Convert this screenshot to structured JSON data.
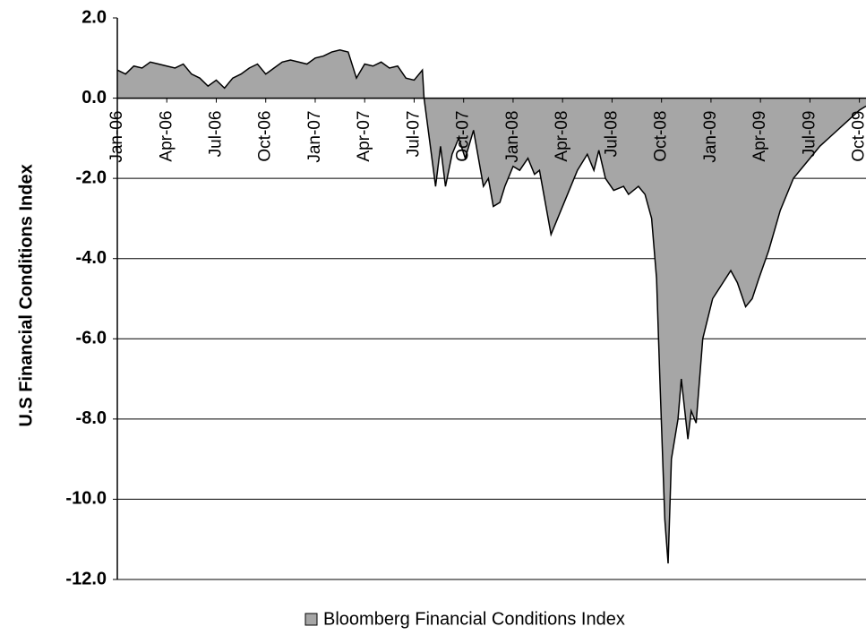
{
  "chart_data": {
    "type": "area",
    "y_label": "U.S Financial Conditions Index",
    "x": [
      0,
      0.5,
      1,
      1.5,
      2,
      2.5,
      3,
      3.5,
      4,
      4.5,
      5,
      5.5,
      6,
      6.5,
      7,
      7.5,
      8,
      8.5,
      9,
      9.5,
      10,
      10.5,
      11,
      11.5,
      12,
      12.5,
      13,
      13.5,
      14,
      14.5,
      15,
      15.5,
      16,
      16.5,
      17,
      17.5,
      18,
      18.5,
      18.6,
      19.3,
      19.6,
      19.9,
      20.3,
      20.7,
      21.1,
      21.6,
      22.2,
      22.5,
      22.8,
      23.2,
      23.5,
      24.0,
      24.4,
      24.9,
      25.3,
      25.6,
      26.3,
      26.9,
      27.4,
      27.9,
      28.5,
      28.9,
      29.2,
      29.6,
      30.1,
      30.7,
      31.0,
      31.6,
      32.0,
      32.4,
      32.7,
      32.9,
      33.2,
      33.4,
      33.6,
      34.0,
      34.2,
      34.6,
      34.8,
      35.1,
      35.5,
      36.1,
      37.2,
      37.6,
      38.1,
      38.5,
      38.9,
      39.5,
      40.2,
      41.0,
      41.8,
      42.6,
      43.4,
      44.2,
      45.0,
      45.4
    ],
    "series": [
      {
        "name": "Bloomberg Financial Conditions Index",
        "color": "#a6a6a6",
        "values": [
          0.7,
          0.6,
          0.8,
          0.75,
          0.9,
          0.85,
          0.8,
          0.75,
          0.85,
          0.6,
          0.5,
          0.3,
          0.45,
          0.25,
          0.5,
          0.6,
          0.75,
          0.85,
          0.6,
          0.75,
          0.9,
          0.95,
          0.9,
          0.85,
          1.0,
          1.05,
          1.15,
          1.2,
          1.15,
          0.5,
          0.85,
          0.8,
          0.9,
          0.75,
          0.8,
          0.5,
          0.45,
          0.7,
          0.0,
          -2.2,
          -1.2,
          -2.2,
          -1.4,
          -1.0,
          -1.5,
          -0.8,
          -2.2,
          -2.0,
          -2.7,
          -2.6,
          -2.2,
          -1.7,
          -1.8,
          -1.5,
          -1.9,
          -1.8,
          -3.4,
          -2.8,
          -2.3,
          -1.8,
          -1.4,
          -1.8,
          -1.3,
          -2.0,
          -2.3,
          -2.2,
          -2.4,
          -2.2,
          -2.4,
          -3.0,
          -4.5,
          -7.0,
          -10.5,
          -11.6,
          -9.0,
          -8.0,
          -7.0,
          -8.5,
          -7.8,
          -8.1,
          -6.0,
          -5.0,
          -4.3,
          -4.6,
          -5.2,
          -5.0,
          -4.5,
          -3.8,
          -2.8,
          -2.0,
          -1.6,
          -1.2,
          -0.9,
          -0.6,
          -0.3,
          -0.2
        ]
      }
    ],
    "xlim": [
      0,
      45.4
    ],
    "xticks": [
      {
        "value": 0,
        "label": "Jan-06"
      },
      {
        "value": 3,
        "label": "Apr-06"
      },
      {
        "value": 6,
        "label": "Jul-06"
      },
      {
        "value": 9,
        "label": "Oct-06"
      },
      {
        "value": 12,
        "label": "Jan-07"
      },
      {
        "value": 15,
        "label": "Apr-07"
      },
      {
        "value": 18,
        "label": "Jul-07"
      },
      {
        "value": 21,
        "label": "Oct-07"
      },
      {
        "value": 24,
        "label": "Jan-08"
      },
      {
        "value": 27,
        "label": "Apr-08"
      },
      {
        "value": 30,
        "label": "Jul-08"
      },
      {
        "value": 33,
        "label": "Oct-08"
      },
      {
        "value": 36,
        "label": "Jan-09"
      },
      {
        "value": 39,
        "label": "Apr-09"
      },
      {
        "value": 42,
        "label": "Jul-09"
      },
      {
        "value": 45,
        "label": "Oct-09"
      }
    ],
    "ylim": [
      -12,
      2
    ],
    "yticks": [
      {
        "value": 2,
        "label": "2.0"
      },
      {
        "value": 0,
        "label": "0.0"
      },
      {
        "value": -2,
        "label": "-2.0"
      },
      {
        "value": -4,
        "label": "-4.0"
      },
      {
        "value": -6,
        "label": "-6.0"
      },
      {
        "value": -8,
        "label": "-8.0"
      },
      {
        "value": -10,
        "label": "-10.0"
      },
      {
        "value": -12,
        "label": "-12.0"
      }
    ],
    "grid": true
  }
}
